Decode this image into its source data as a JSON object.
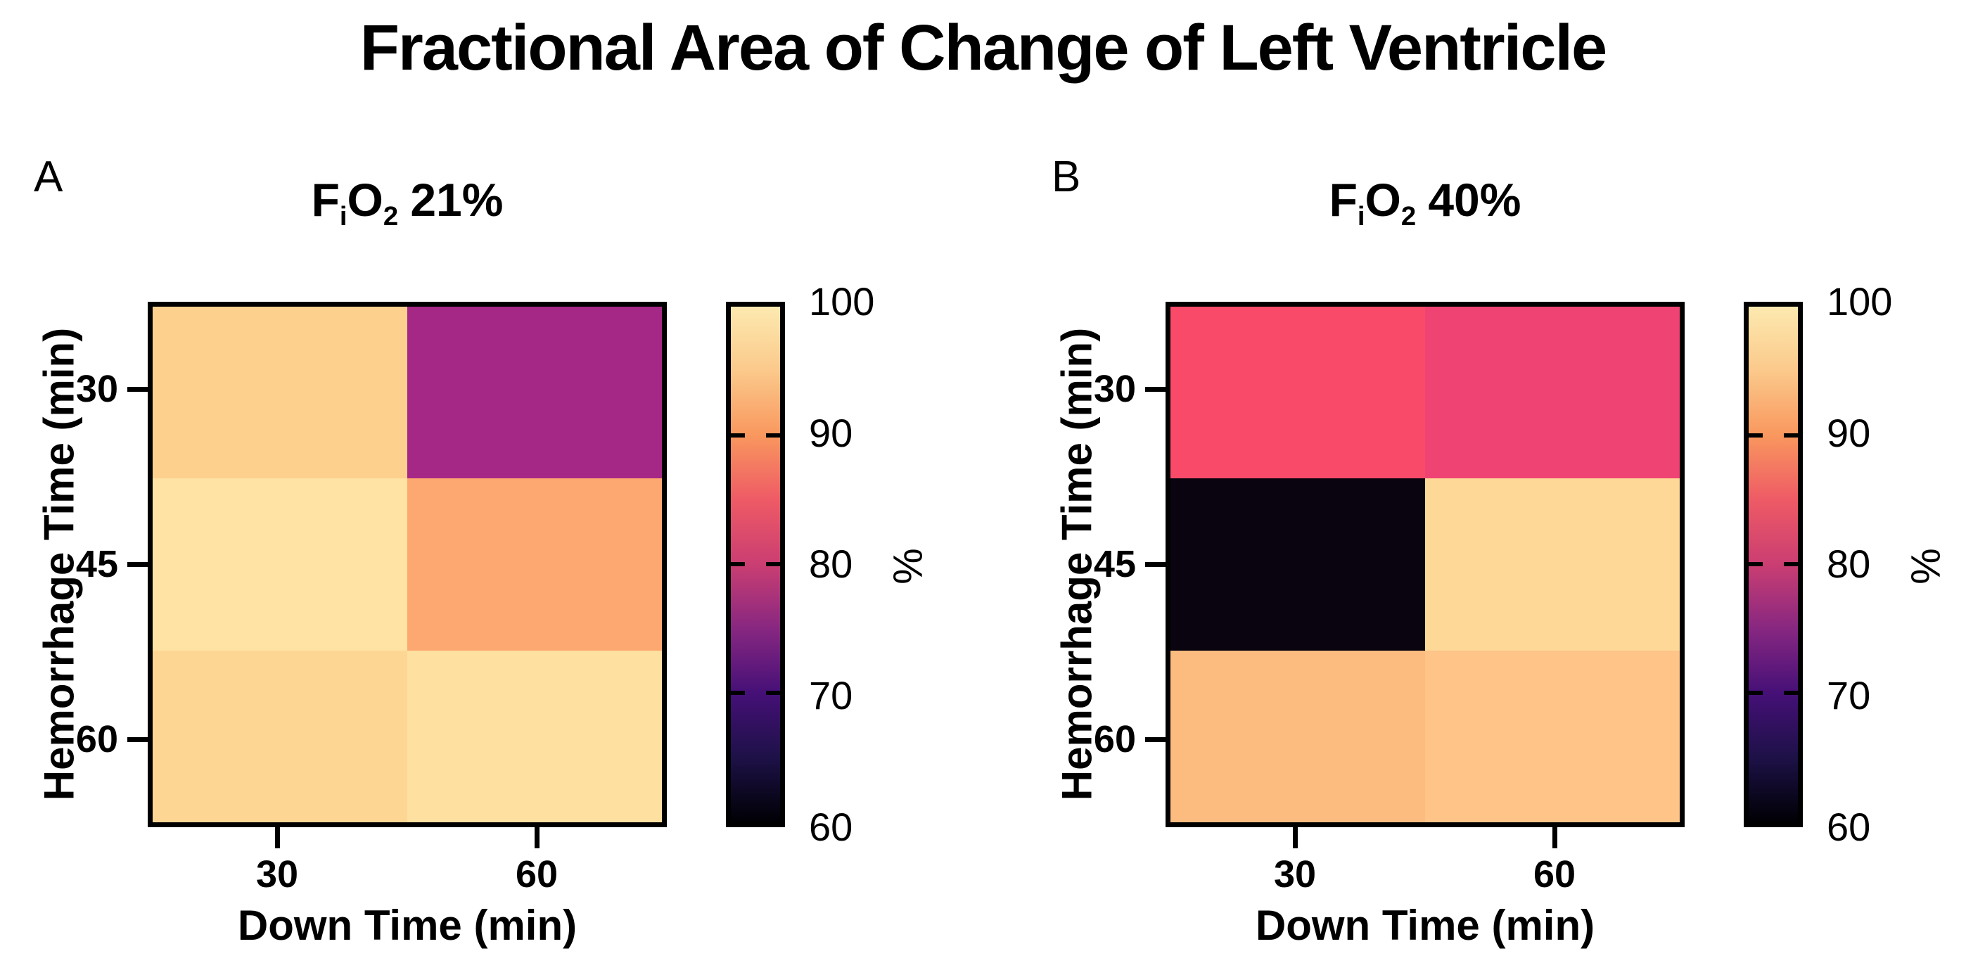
{
  "title": "Fractional Area of Change of Left Ventricle",
  "axes": {
    "x_title": "Down Time (min)",
    "y_title": "Hemorrhage Time (min)",
    "x_ticks": [
      "30",
      "60"
    ],
    "y_ticks": [
      "30",
      "45",
      "60"
    ]
  },
  "colorbar": {
    "title": "%",
    "tick_labels": [
      "100",
      "90",
      "80",
      "70",
      "60"
    ],
    "range": [
      60,
      100
    ],
    "colormap": "magma",
    "gradient_stops": [
      "#000004",
      "#1D1147",
      "#451077",
      "#872781",
      "#CA3E72",
      "#EE5A65",
      "#F9975E",
      "#FBC98B",
      "#FCE9AF"
    ]
  },
  "panels": [
    {
      "letter": "A",
      "subtitle": {
        "f": "F",
        "i": "i",
        "o": "O",
        "two": "2",
        "rest": "21%",
        "text": "FiO2 21%"
      },
      "cells": [
        [
          "#FDD08E",
          "#A52786"
        ],
        [
          "#FEE3A4",
          "#FDA871"
        ],
        [
          "#FDD694",
          "#FEE0A0"
        ]
      ]
    },
    {
      "letter": "B",
      "subtitle": {
        "f": "F",
        "i": "i",
        "o": "O",
        "two": "2",
        "rest": "40%",
        "text": "FiO2 40%"
      },
      "cells": [
        [
          "#FA4A69",
          "#EF4374"
        ],
        [
          "#0A0410",
          "#FED897"
        ],
        [
          "#FDBC7F",
          "#FEC488"
        ]
      ]
    }
  ],
  "chart_data": [
    {
      "type": "heatmap",
      "panel": "A",
      "title": "FiO2 21%",
      "xlabel": "Down Time (min)",
      "ylabel": "Hemorrhage Time (min)",
      "x_categories": [
        30,
        60
      ],
      "y_categories": [
        30,
        45,
        60
      ],
      "values_percent_estimated": [
        [
          96,
          78
        ],
        [
          98,
          93
        ],
        [
          97,
          98
        ]
      ],
      "cell_colors": [
        [
          "#FDD08E",
          "#A52786"
        ],
        [
          "#FEE3A4",
          "#FDA871"
        ],
        [
          "#FDD694",
          "#FEE0A0"
        ]
      ],
      "colorbar": {
        "label": "%",
        "min": 60,
        "max": 100,
        "ticks": [
          60,
          70,
          80,
          90,
          100
        ],
        "colormap": "magma",
        "orientation": "vertical-right"
      },
      "grid": false,
      "legend": false
    },
    {
      "type": "heatmap",
      "panel": "B",
      "title": "FiO2 40%",
      "xlabel": "Down Time (min)",
      "ylabel": "Hemorrhage Time (min)",
      "x_categories": [
        30,
        60
      ],
      "y_categories": [
        30,
        45,
        60
      ],
      "values_percent_estimated": [
        [
          86,
          85
        ],
        [
          60,
          97
        ],
        [
          94,
          95
        ]
      ],
      "cell_colors": [
        [
          "#FA4A69",
          "#EF4374"
        ],
        [
          "#0A0410",
          "#FED897"
        ],
        [
          "#FDBC7F",
          "#FEC488"
        ]
      ],
      "colorbar": {
        "label": "%",
        "min": 60,
        "max": 100,
        "ticks": [
          60,
          70,
          80,
          90,
          100
        ],
        "colormap": "magma",
        "orientation": "vertical-right"
      },
      "grid": false,
      "legend": false
    }
  ]
}
